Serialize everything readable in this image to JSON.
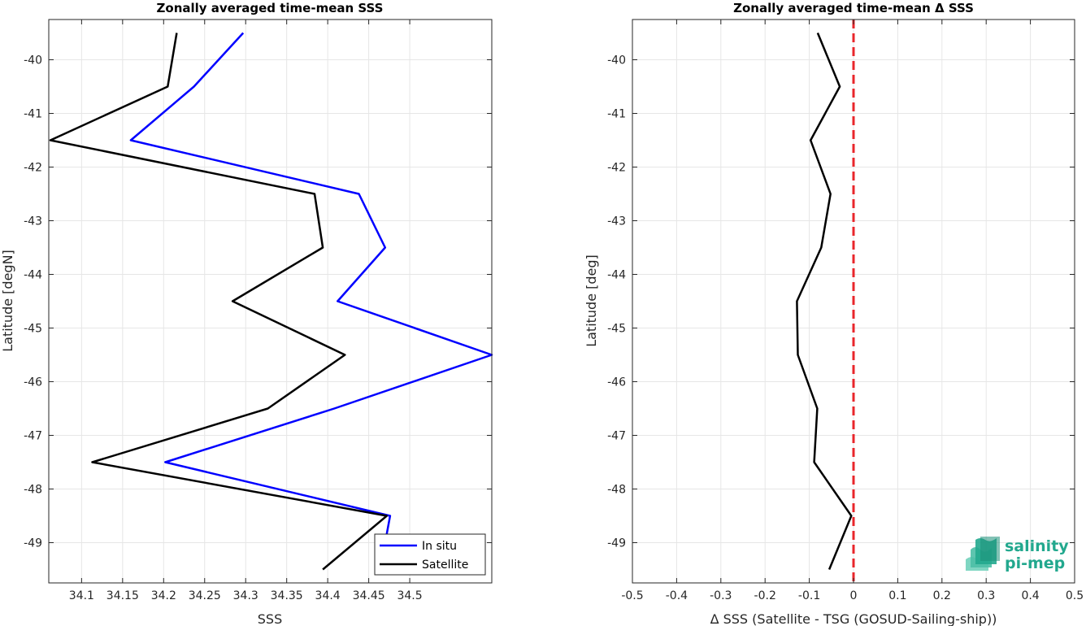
{
  "chart_data": [
    {
      "type": "line",
      "title": "Zonally averaged time-mean SSS",
      "xlabel": "SSS",
      "ylabel": "Latitude [degN]",
      "xlim": [
        34.06,
        34.6
      ],
      "ylim": [
        -49.75,
        -39.25
      ],
      "xticks": [
        34.1,
        34.15,
        34.2,
        34.25,
        34.3,
        34.35,
        34.4,
        34.45,
        34.5
      ],
      "xtick_labels": [
        "34.1",
        "34.15",
        "34.2",
        "34.25",
        "34.3",
        "34.35",
        "34.4",
        "34.45",
        "34.5"
      ],
      "yticks": [
        -40,
        -41,
        -42,
        -43,
        -44,
        -45,
        -46,
        -47,
        -48,
        -49
      ],
      "ytick_labels": [
        "-40",
        "-41",
        "-42",
        "-43",
        "-44",
        "-45",
        "-46",
        "-47",
        "-48",
        "-49"
      ],
      "grid": true,
      "legend_position": "bottom-right",
      "series": [
        {
          "name": "In situ",
          "color": "#0000ff",
          "points": [
            [
              34.297,
              -39.5
            ],
            [
              34.237,
              -40.5
            ],
            [
              34.16,
              -41.5
            ],
            [
              34.438,
              -42.5
            ],
            [
              34.47,
              -43.5
            ],
            [
              34.412,
              -44.5
            ],
            [
              34.6,
              -45.5
            ],
            [
              34.408,
              -46.5
            ],
            [
              34.202,
              -47.5
            ],
            [
              34.476,
              -48.5
            ],
            [
              34.47,
              -49.0
            ]
          ]
        },
        {
          "name": "Satellite",
          "color": "#000000",
          "points": [
            [
              34.216,
              -39.5
            ],
            [
              34.205,
              -40.5
            ],
            [
              34.062,
              -41.5
            ],
            [
              34.384,
              -42.5
            ],
            [
              34.394,
              -43.5
            ],
            [
              34.284,
              -44.5
            ],
            [
              34.421,
              -45.5
            ],
            [
              34.327,
              -46.5
            ],
            [
              34.113,
              -47.5
            ],
            [
              34.472,
              -48.5
            ],
            [
              34.394,
              -49.5
            ]
          ]
        }
      ]
    },
    {
      "type": "line",
      "title": "Zonally averaged time-mean Δ SSS",
      "xlabel": "Δ SSS (Satellite - TSG (GOSUD-Sailing-ship))",
      "ylabel": "Latitude [deg]",
      "xlim": [
        -0.5,
        0.5
      ],
      "ylim": [
        -49.75,
        -39.25
      ],
      "xticks": [
        -0.5,
        -0.4,
        -0.3,
        -0.2,
        -0.1,
        0,
        0.1,
        0.2,
        0.3,
        0.4,
        0.5
      ],
      "xtick_labels": [
        "-0.5",
        "-0.4",
        "-0.3",
        "-0.2",
        "-0.1",
        "0",
        "0.1",
        "0.2",
        "0.3",
        "0.4",
        "0.5"
      ],
      "yticks": [
        -40,
        -41,
        -42,
        -43,
        -44,
        -45,
        -46,
        -47,
        -48,
        -49
      ],
      "ytick_labels": [
        "-40",
        "-41",
        "-42",
        "-43",
        "-44",
        "-45",
        "-46",
        "-47",
        "-48",
        "-49"
      ],
      "grid": true,
      "reference_line": {
        "x": 0,
        "color": "#e8262b",
        "style": "dashed"
      },
      "series": [
        {
          "color": "#000000",
          "points": [
            [
              -0.081,
              -39.5
            ],
            [
              -0.031,
              -40.5
            ],
            [
              -0.097,
              -41.5
            ],
            [
              -0.052,
              -42.5
            ],
            [
              -0.073,
              -43.5
            ],
            [
              -0.128,
              -44.5
            ],
            [
              -0.126,
              -45.5
            ],
            [
              -0.082,
              -46.5
            ],
            [
              -0.089,
              -47.5
            ],
            [
              -0.005,
              -48.5
            ],
            [
              -0.055,
              -49.5
            ]
          ]
        }
      ]
    }
  ],
  "logo": {
    "line1": "salinity",
    "line2": "pi-mep"
  },
  "colors": {
    "grid": "#e6e6e6",
    "axis": "#262626"
  }
}
